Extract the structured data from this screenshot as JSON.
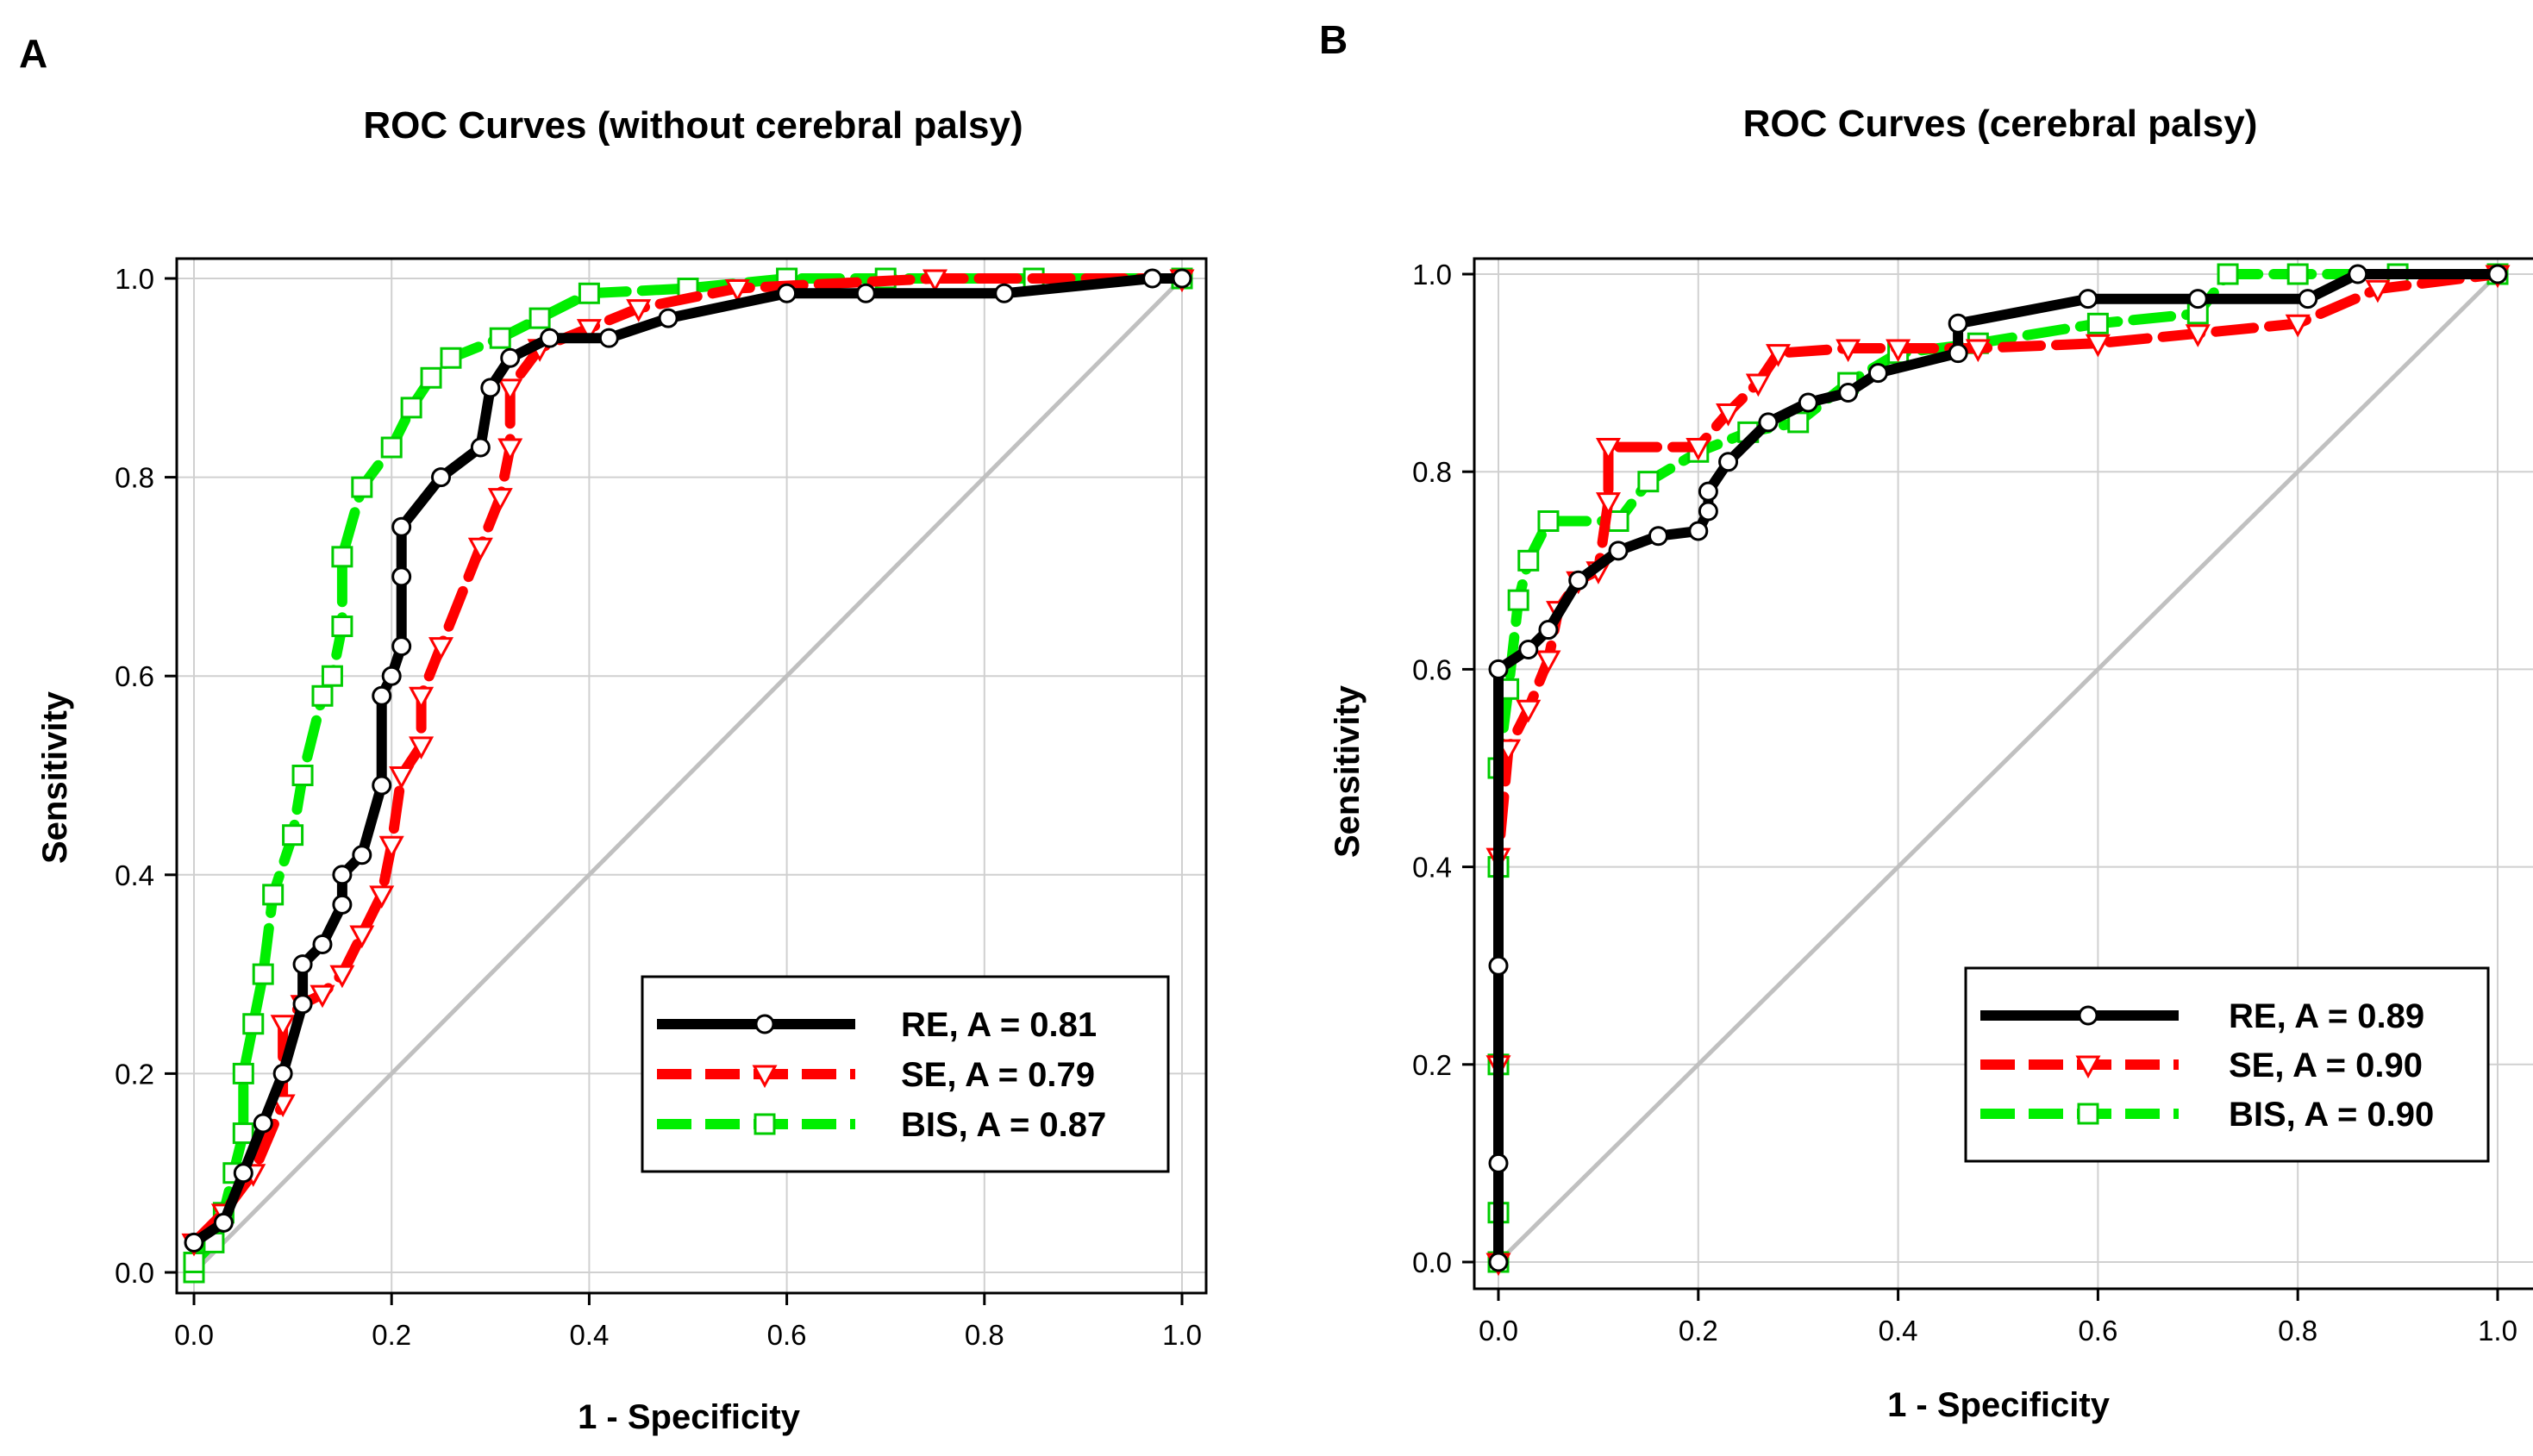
{
  "colors": {
    "re": "#000000",
    "se": "#ff0000",
    "bis": "#00ee00",
    "diagonal": "#c0c0c0",
    "grid": "#d0d0d0"
  },
  "chart_data": [
    {
      "type": "line",
      "panel_label": "A",
      "title": "ROC Curves (without cerebral palsy)",
      "xlabel": "1 - Specificity",
      "ylabel": "Sensitivity",
      "xlim": [
        0,
        1
      ],
      "ylim": [
        0,
        1
      ],
      "xticks": [
        "0.0",
        "0.2",
        "0.4",
        "0.6",
        "0.8",
        "1.0"
      ],
      "yticks": [
        "0.0",
        "0.2",
        "0.4",
        "0.6",
        "0.8",
        "1.0"
      ],
      "grid": true,
      "legend_position": "bottom-right",
      "series": [
        {
          "key": "re",
          "name": "RE, A = 0.81",
          "marker": "circle",
          "line_style": "solid",
          "points": [
            [
              0,
              0.03
            ],
            [
              0.03,
              0.05
            ],
            [
              0.05,
              0.1
            ],
            [
              0.07,
              0.15
            ],
            [
              0.09,
              0.2
            ],
            [
              0.11,
              0.27
            ],
            [
              0.11,
              0.31
            ],
            [
              0.13,
              0.33
            ],
            [
              0.15,
              0.37
            ],
            [
              0.15,
              0.4
            ],
            [
              0.17,
              0.42
            ],
            [
              0.19,
              0.49
            ],
            [
              0.19,
              0.58
            ],
            [
              0.2,
              0.6
            ],
            [
              0.21,
              0.63
            ],
            [
              0.21,
              0.7
            ],
            [
              0.21,
              0.75
            ],
            [
              0.25,
              0.8
            ],
            [
              0.29,
              0.83
            ],
            [
              0.3,
              0.89
            ],
            [
              0.32,
              0.92
            ],
            [
              0.36,
              0.94
            ],
            [
              0.42,
              0.94
            ],
            [
              0.48,
              0.96
            ],
            [
              0.6,
              0.985
            ],
            [
              0.68,
              0.985
            ],
            [
              0.82,
              0.985
            ],
            [
              0.97,
              1.0
            ],
            [
              1.0,
              1.0
            ]
          ]
        },
        {
          "key": "se",
          "name": "SE, A = 0.79",
          "marker": "triangle-down",
          "line_style": "dashed",
          "points": [
            [
              0,
              0.03
            ],
            [
              0.03,
              0.06
            ],
            [
              0.06,
              0.1
            ],
            [
              0.09,
              0.17
            ],
            [
              0.09,
              0.25
            ],
            [
              0.11,
              0.27
            ],
            [
              0.13,
              0.28
            ],
            [
              0.15,
              0.3
            ],
            [
              0.17,
              0.34
            ],
            [
              0.19,
              0.38
            ],
            [
              0.2,
              0.43
            ],
            [
              0.21,
              0.5
            ],
            [
              0.23,
              0.53
            ],
            [
              0.23,
              0.58
            ],
            [
              0.25,
              0.63
            ],
            [
              0.29,
              0.73
            ],
            [
              0.31,
              0.78
            ],
            [
              0.32,
              0.83
            ],
            [
              0.32,
              0.89
            ],
            [
              0.35,
              0.93
            ],
            [
              0.4,
              0.95
            ],
            [
              0.45,
              0.97
            ],
            [
              0.55,
              0.99
            ],
            [
              0.75,
              1.0
            ],
            [
              1.0,
              1.0
            ]
          ]
        },
        {
          "key": "bis",
          "name": "BIS, A = 0.87",
          "marker": "square",
          "line_style": "dashed",
          "points": [
            [
              0,
              0
            ],
            [
              0,
              0.01
            ],
            [
              0.02,
              0.03
            ],
            [
              0.03,
              0.06
            ],
            [
              0.04,
              0.1
            ],
            [
              0.05,
              0.14
            ],
            [
              0.05,
              0.2
            ],
            [
              0.06,
              0.25
            ],
            [
              0.07,
              0.3
            ],
            [
              0.08,
              0.38
            ],
            [
              0.1,
              0.44
            ],
            [
              0.11,
              0.5
            ],
            [
              0.13,
              0.58
            ],
            [
              0.14,
              0.6
            ],
            [
              0.15,
              0.65
            ],
            [
              0.15,
              0.72
            ],
            [
              0.17,
              0.79
            ],
            [
              0.2,
              0.83
            ],
            [
              0.22,
              0.87
            ],
            [
              0.24,
              0.9
            ],
            [
              0.26,
              0.92
            ],
            [
              0.31,
              0.94
            ],
            [
              0.35,
              0.96
            ],
            [
              0.4,
              0.985
            ],
            [
              0.5,
              0.99
            ],
            [
              0.6,
              1.0
            ],
            [
              0.7,
              1.0
            ],
            [
              0.85,
              1.0
            ],
            [
              1.0,
              1.0
            ]
          ]
        }
      ]
    },
    {
      "type": "line",
      "panel_label": "B",
      "title": "ROC Curves (cerebral palsy)",
      "xlabel": "1 - Specificity",
      "ylabel": "Sensitivity",
      "xlim": [
        0,
        1
      ],
      "ylim": [
        0,
        1
      ],
      "xticks": [
        "0.0",
        "0.2",
        "0.4",
        "0.6",
        "0.8",
        "1.0"
      ],
      "yticks": [
        "0.0",
        "0.2",
        "0.4",
        "0.6",
        "0.8",
        "1.0"
      ],
      "grid": true,
      "legend_position": "bottom-right",
      "series": [
        {
          "key": "re",
          "name": "RE, A = 0.89",
          "marker": "circle",
          "line_style": "solid",
          "points": [
            [
              0,
              0
            ],
            [
              0,
              0.1
            ],
            [
              0,
              0.3
            ],
            [
              0,
              0.6
            ],
            [
              0.03,
              0.62
            ],
            [
              0.05,
              0.64
            ],
            [
              0.08,
              0.69
            ],
            [
              0.12,
              0.72
            ],
            [
              0.16,
              0.735
            ],
            [
              0.2,
              0.74
            ],
            [
              0.21,
              0.76
            ],
            [
              0.21,
              0.78
            ],
            [
              0.23,
              0.81
            ],
            [
              0.27,
              0.85
            ],
            [
              0.31,
              0.87
            ],
            [
              0.35,
              0.88
            ],
            [
              0.38,
              0.9
            ],
            [
              0.46,
              0.92
            ],
            [
              0.46,
              0.95
            ],
            [
              0.59,
              0.975
            ],
            [
              0.7,
              0.975
            ],
            [
              0.81,
              0.975
            ],
            [
              0.86,
              1.0
            ],
            [
              1.0,
              1.0
            ]
          ]
        },
        {
          "key": "se",
          "name": "SE, A = 0.90",
          "marker": "triangle-down",
          "line_style": "dashed",
          "points": [
            [
              0,
              0
            ],
            [
              0,
              0.2
            ],
            [
              0,
              0.41
            ],
            [
              0.01,
              0.52
            ],
            [
              0.03,
              0.56
            ],
            [
              0.05,
              0.61
            ],
            [
              0.06,
              0.66
            ],
            [
              0.08,
              0.69
            ],
            [
              0.1,
              0.7
            ],
            [
              0.11,
              0.77
            ],
            [
              0.11,
              0.825
            ],
            [
              0.2,
              0.825
            ],
            [
              0.23,
              0.86
            ],
            [
              0.26,
              0.89
            ],
            [
              0.28,
              0.92
            ],
            [
              0.35,
              0.925
            ],
            [
              0.4,
              0.925
            ],
            [
              0.48,
              0.925
            ],
            [
              0.6,
              0.93
            ],
            [
              0.7,
              0.94
            ],
            [
              0.8,
              0.95
            ],
            [
              0.88,
              0.985
            ],
            [
              1.0,
              1.0
            ]
          ]
        },
        {
          "key": "bis",
          "name": "BIS, A = 0.90",
          "marker": "square",
          "line_style": "dashed",
          "points": [
            [
              0,
              0
            ],
            [
              0,
              0.05
            ],
            [
              0,
              0.2
            ],
            [
              0,
              0.4
            ],
            [
              0,
              0.5
            ],
            [
              0.01,
              0.58
            ],
            [
              0.02,
              0.67
            ],
            [
              0.03,
              0.71
            ],
            [
              0.05,
              0.75
            ],
            [
              0.12,
              0.75
            ],
            [
              0.15,
              0.79
            ],
            [
              0.2,
              0.82
            ],
            [
              0.25,
              0.84
            ],
            [
              0.3,
              0.85
            ],
            [
              0.35,
              0.89
            ],
            [
              0.4,
              0.92
            ],
            [
              0.48,
              0.93
            ],
            [
              0.6,
              0.95
            ],
            [
              0.7,
              0.96
            ],
            [
              0.73,
              1.0
            ],
            [
              0.8,
              1.0
            ],
            [
              0.9,
              1.0
            ],
            [
              1.0,
              1.0
            ]
          ]
        }
      ]
    }
  ]
}
